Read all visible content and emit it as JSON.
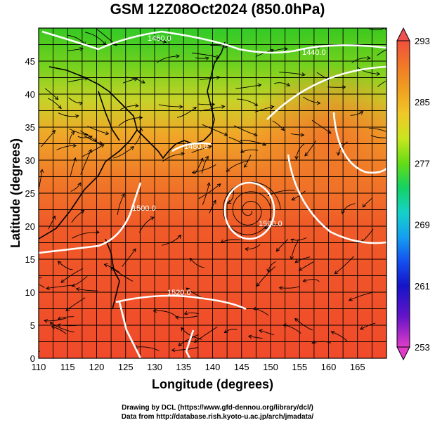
{
  "title": "GSM 12Z08Oct2024 (850.0hPa)",
  "x_axis": {
    "label": "Longitude (degrees)",
    "range": [
      110,
      170
    ],
    "ticks": [
      "110",
      "115",
      "120",
      "125",
      "130",
      "135",
      "140",
      "145",
      "150",
      "155",
      "160",
      "165"
    ]
  },
  "y_axis": {
    "label": "Latitude  (degrees)",
    "range": [
      0,
      50
    ],
    "ticks": [
      "0",
      "5",
      "10",
      "15",
      "20",
      "25",
      "30",
      "35",
      "40",
      "45"
    ]
  },
  "colorbar": {
    "ticks": [
      "293",
      "285",
      "277",
      "269",
      "261",
      "253"
    ],
    "colors": [
      "#f0503c",
      "#f07828",
      "#f0a020",
      "#f0c828",
      "#c8e61e",
      "#64dc14",
      "#14d264",
      "#14d2c8",
      "#14a0f0",
      "#1450f0",
      "#1414c8",
      "#6414c8",
      "#c814c8",
      "#f03cc8"
    ]
  },
  "contour_labels": [
    "1460.0",
    "1440.0",
    "1480.0",
    "1500.0",
    "1500.0",
    "1520.0"
  ],
  "credits": {
    "line1": "Drawing by DCL (https://www.gfd-dennou.org/library/dcl/)",
    "line2": "Data from http://database.rish.kyoto-u.ac.jp/arch/jmadata/"
  }
}
